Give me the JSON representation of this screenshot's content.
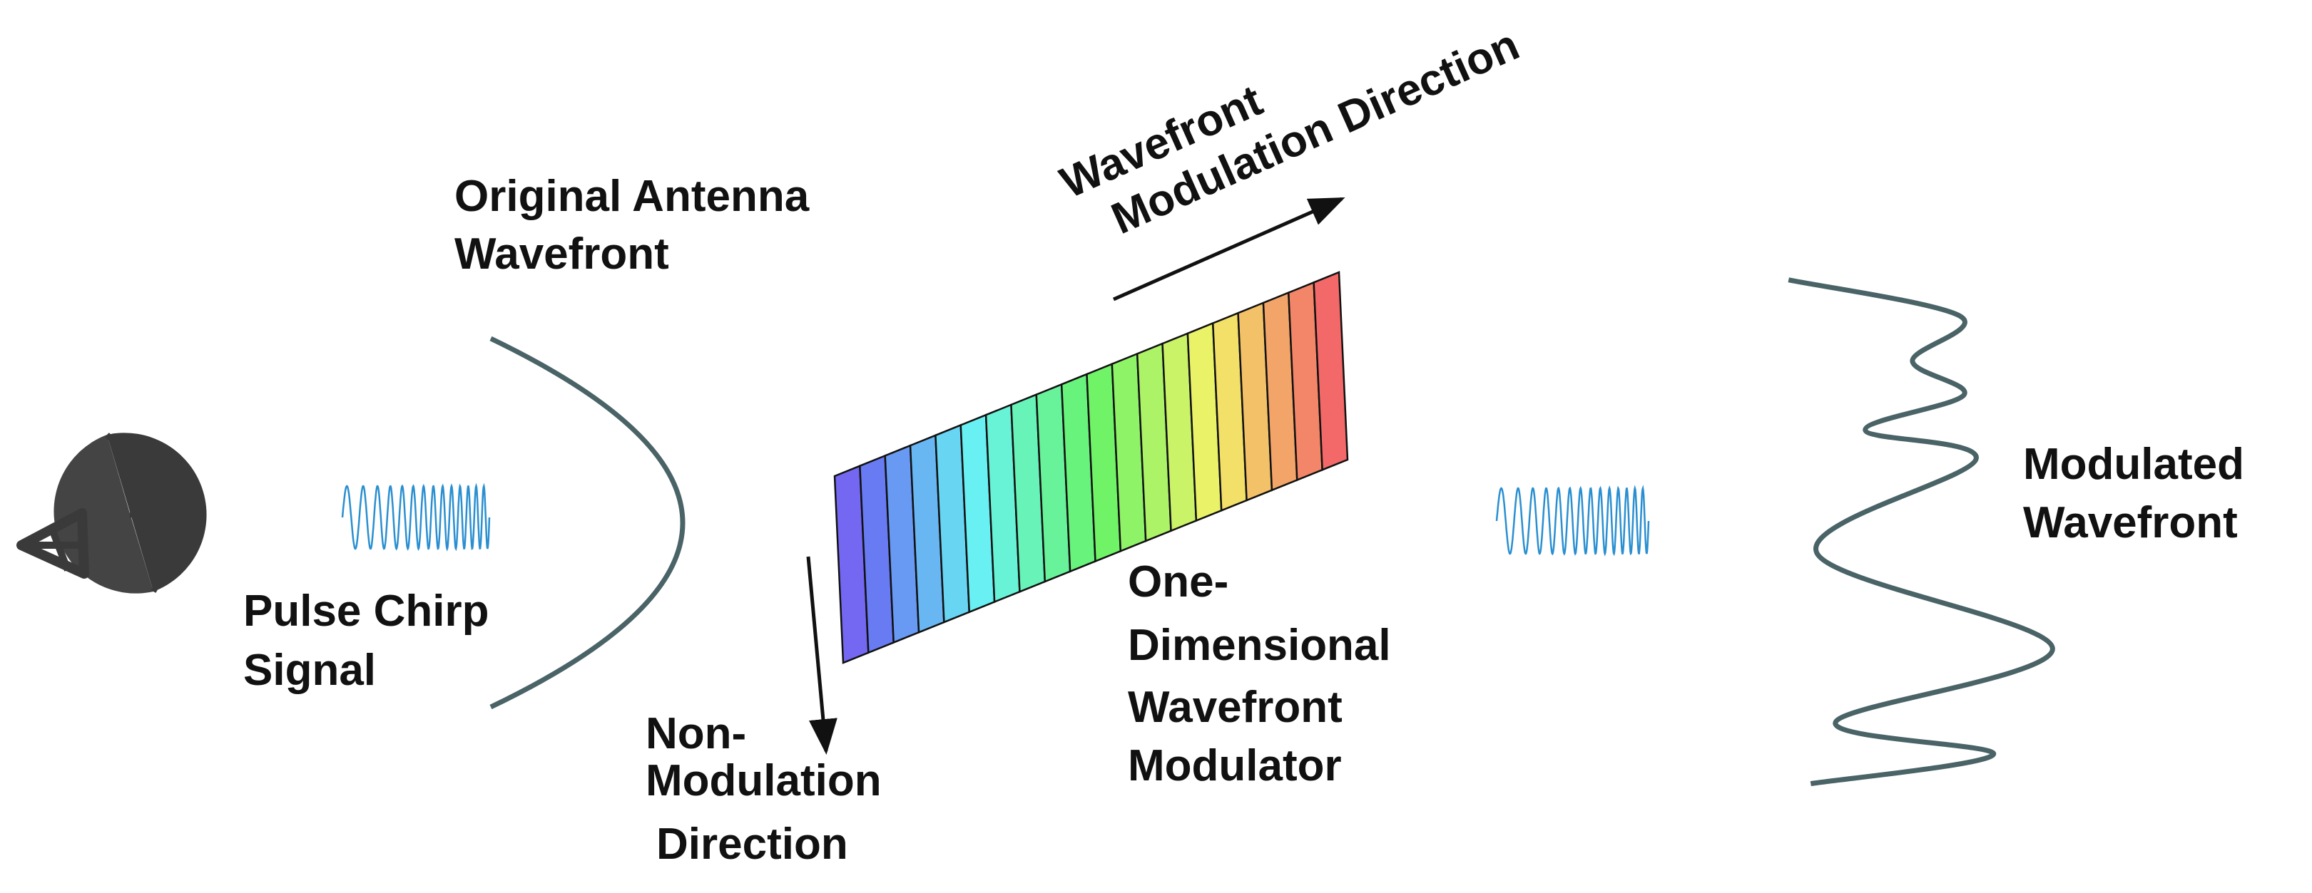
{
  "labels": {
    "original_antenna_wavefront": [
      "Original Antenna",
      "Wavefront"
    ],
    "wavefront_modulation_direction": [
      "Wavefront",
      "Modulation Direction"
    ],
    "pulse_chirp_signal": [
      "Pulse Chirp",
      "Signal"
    ],
    "non_modulation_direction": [
      "Non-",
      "Modulation",
      "Direction"
    ],
    "modulator": [
      "One-",
      "Dimensional",
      "Wavefront",
      "Modulator"
    ],
    "modulated_wavefront": [
      "Modulated",
      "Wavefront"
    ]
  }
}
